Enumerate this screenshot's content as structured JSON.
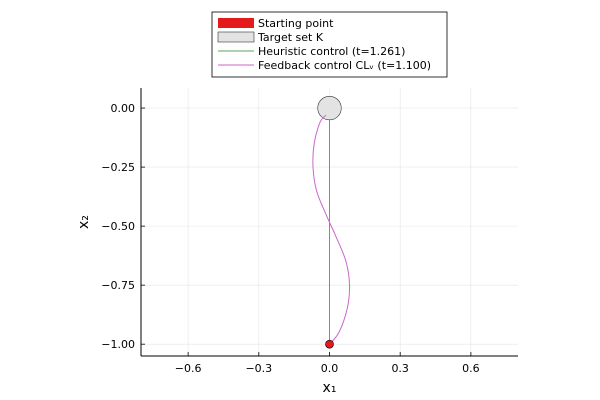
{
  "chart_data": {
    "type": "line",
    "xlabel": "x₁",
    "ylabel": "x₂",
    "xlim": [
      -0.8,
      0.8
    ],
    "ylim": [
      -1.05,
      0.085
    ],
    "xticks": [
      -0.6,
      -0.3,
      0.0,
      0.3,
      0.6
    ],
    "xtick_labels": [
      "−0.6",
      "−0.3",
      "0.0",
      "0.3",
      "0.6"
    ],
    "yticks": [
      0.0,
      -0.25,
      -0.5,
      -0.75,
      -1.0
    ],
    "ytick_labels": [
      "0.00",
      "−0.25",
      "−0.50",
      "−0.75",
      "−1.00"
    ],
    "grid": true,
    "legend_position": "top",
    "legend": [
      {
        "label": "Starting point",
        "kind": "marker",
        "color": "#e41a1c"
      },
      {
        "label": "Target set K",
        "kind": "shape",
        "color": "#e3e3e3"
      },
      {
        "label": "Heuristic control (t=1.261)",
        "kind": "line",
        "color": "#5aa85a"
      },
      {
        "label": "Feedback control CLᵥ (t=1.100)",
        "kind": "line",
        "color": "#cc66cc"
      }
    ],
    "starting_point": {
      "x": 0.0,
      "y": -1.0,
      "color": "#e41a1c"
    },
    "target_set": {
      "center_x": 0.0,
      "center_y": 0.0,
      "radius": 0.05,
      "color": "#e3e3e3"
    },
    "series": [
      {
        "name": "Heuristic control (t=1.261)",
        "color": "#5aa85a",
        "x": [
          0.0,
          0.0
        ],
        "y": [
          -1.0,
          -0.05
        ]
      },
      {
        "name": "Feedback control CLᵥ (t=1.100)",
        "color": "#cc66cc",
        "x": [
          0.0,
          0.04,
          0.075,
          0.085,
          0.07,
          0.03,
          -0.015,
          -0.055,
          -0.07,
          -0.065,
          -0.04,
          -0.015
        ],
        "y": [
          -1.0,
          -0.95,
          -0.85,
          -0.75,
          -0.65,
          -0.55,
          -0.45,
          -0.35,
          -0.25,
          -0.15,
          -0.06,
          -0.03
        ]
      }
    ]
  }
}
